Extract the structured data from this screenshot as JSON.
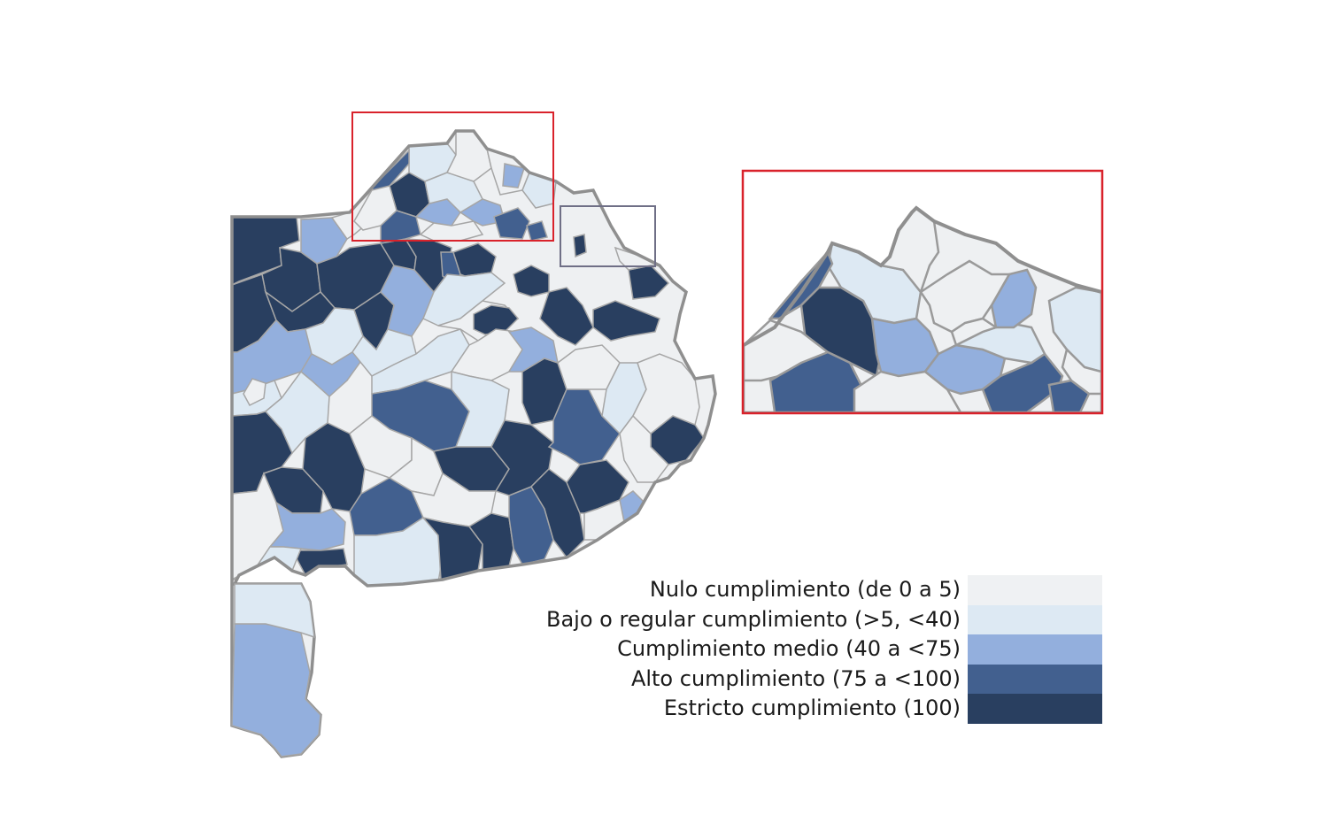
{
  "colors": {
    "nulo": "#eff1f3",
    "bajo": "#dde9f3",
    "medio": "#93afdd",
    "alto": "#42608f",
    "estricto": "#293f60",
    "border": "#959595",
    "zoom_box": "#d9222b",
    "amba_box": "#6f6f86"
  },
  "legend": {
    "items": [
      {
        "key": "nulo",
        "label": "Nulo cumplimiento (de 0 a 5)",
        "color": "#eff1f3"
      },
      {
        "key": "bajo",
        "label": "Bajo o regular cumplimiento (>5, <40)",
        "color": "#dde9f3"
      },
      {
        "key": "medio",
        "label": "Cumplimiento medio (40 a <75)",
        "color": "#93afdd"
      },
      {
        "key": "alto",
        "label": "Alto cumplimiento (75 a <100)",
        "color": "#42608f"
      },
      {
        "key": "estricto",
        "label": "Estricto cumplimiento (100)",
        "color": "#293f60"
      }
    ]
  }
}
